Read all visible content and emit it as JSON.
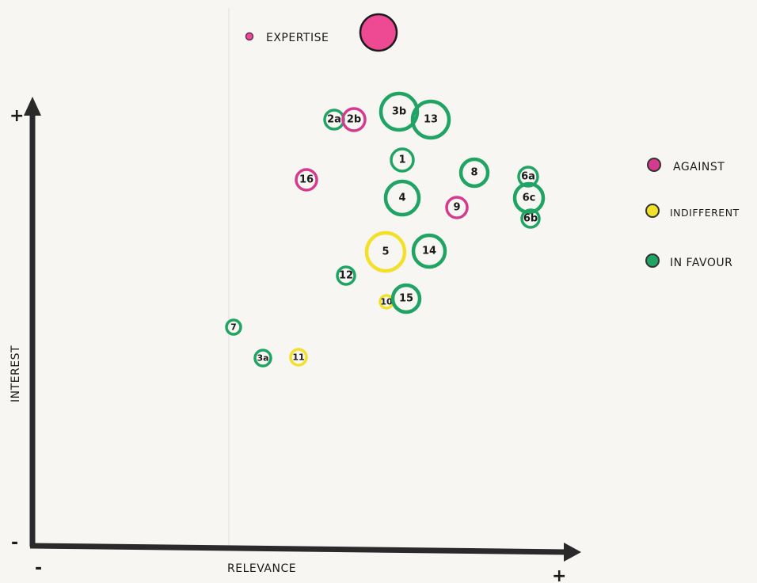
{
  "colors": {
    "against": "#d63a8e",
    "indifferent": "#f2e02a",
    "in_favour": "#1fa463",
    "expertise_fill": "#ee4a93",
    "axis": "#2a2a2a"
  },
  "expertise_legend": {
    "label": "EXPERTISE"
  },
  "axes": {
    "y_label": "INTEREST",
    "x_label": "RELEVANCE",
    "y_plus": "+",
    "y_minus": "-",
    "x_minus": "-",
    "x_plus": "+"
  },
  "legend": {
    "items": [
      {
        "label": "AGAINST",
        "color_key": "against"
      },
      {
        "label": "INDIFFERENT",
        "color_key": "indifferent"
      },
      {
        "label": "IN FAVOUR",
        "color_key": "in_favour"
      }
    ]
  },
  "stakeholders": [
    {
      "id": "2a",
      "label": "2a",
      "stance": "in_favour"
    },
    {
      "id": "2b",
      "label": "2b",
      "stance": "against"
    },
    {
      "id": "3b",
      "label": "3b",
      "stance": "in_favour"
    },
    {
      "id": "13",
      "label": "13",
      "stance": "in_favour"
    },
    {
      "id": "1",
      "label": "1",
      "stance": "in_favour"
    },
    {
      "id": "8",
      "label": "8",
      "stance": "in_favour"
    },
    {
      "id": "16",
      "label": "16",
      "stance": "against"
    },
    {
      "id": "4",
      "label": "4",
      "stance": "in_favour"
    },
    {
      "id": "9",
      "label": "9",
      "stance": "against"
    },
    {
      "id": "6a",
      "label": "6a",
      "stance": "in_favour"
    },
    {
      "id": "6c",
      "label": "6c",
      "stance": "in_favour"
    },
    {
      "id": "6b",
      "label": "6b",
      "stance": "in_favour"
    },
    {
      "id": "5",
      "label": "5",
      "stance": "indifferent"
    },
    {
      "id": "14",
      "label": "14",
      "stance": "in_favour"
    },
    {
      "id": "12",
      "label": "12",
      "stance": "in_favour"
    },
    {
      "id": "10",
      "label": "10",
      "stance": "indifferent"
    },
    {
      "id": "15",
      "label": "15",
      "stance": "in_favour"
    },
    {
      "id": "7",
      "label": "7",
      "stance": "in_favour"
    },
    {
      "id": "3a",
      "label": "3a",
      "stance": "in_favour"
    },
    {
      "id": "11",
      "label": "11",
      "stance": "indifferent"
    }
  ]
}
